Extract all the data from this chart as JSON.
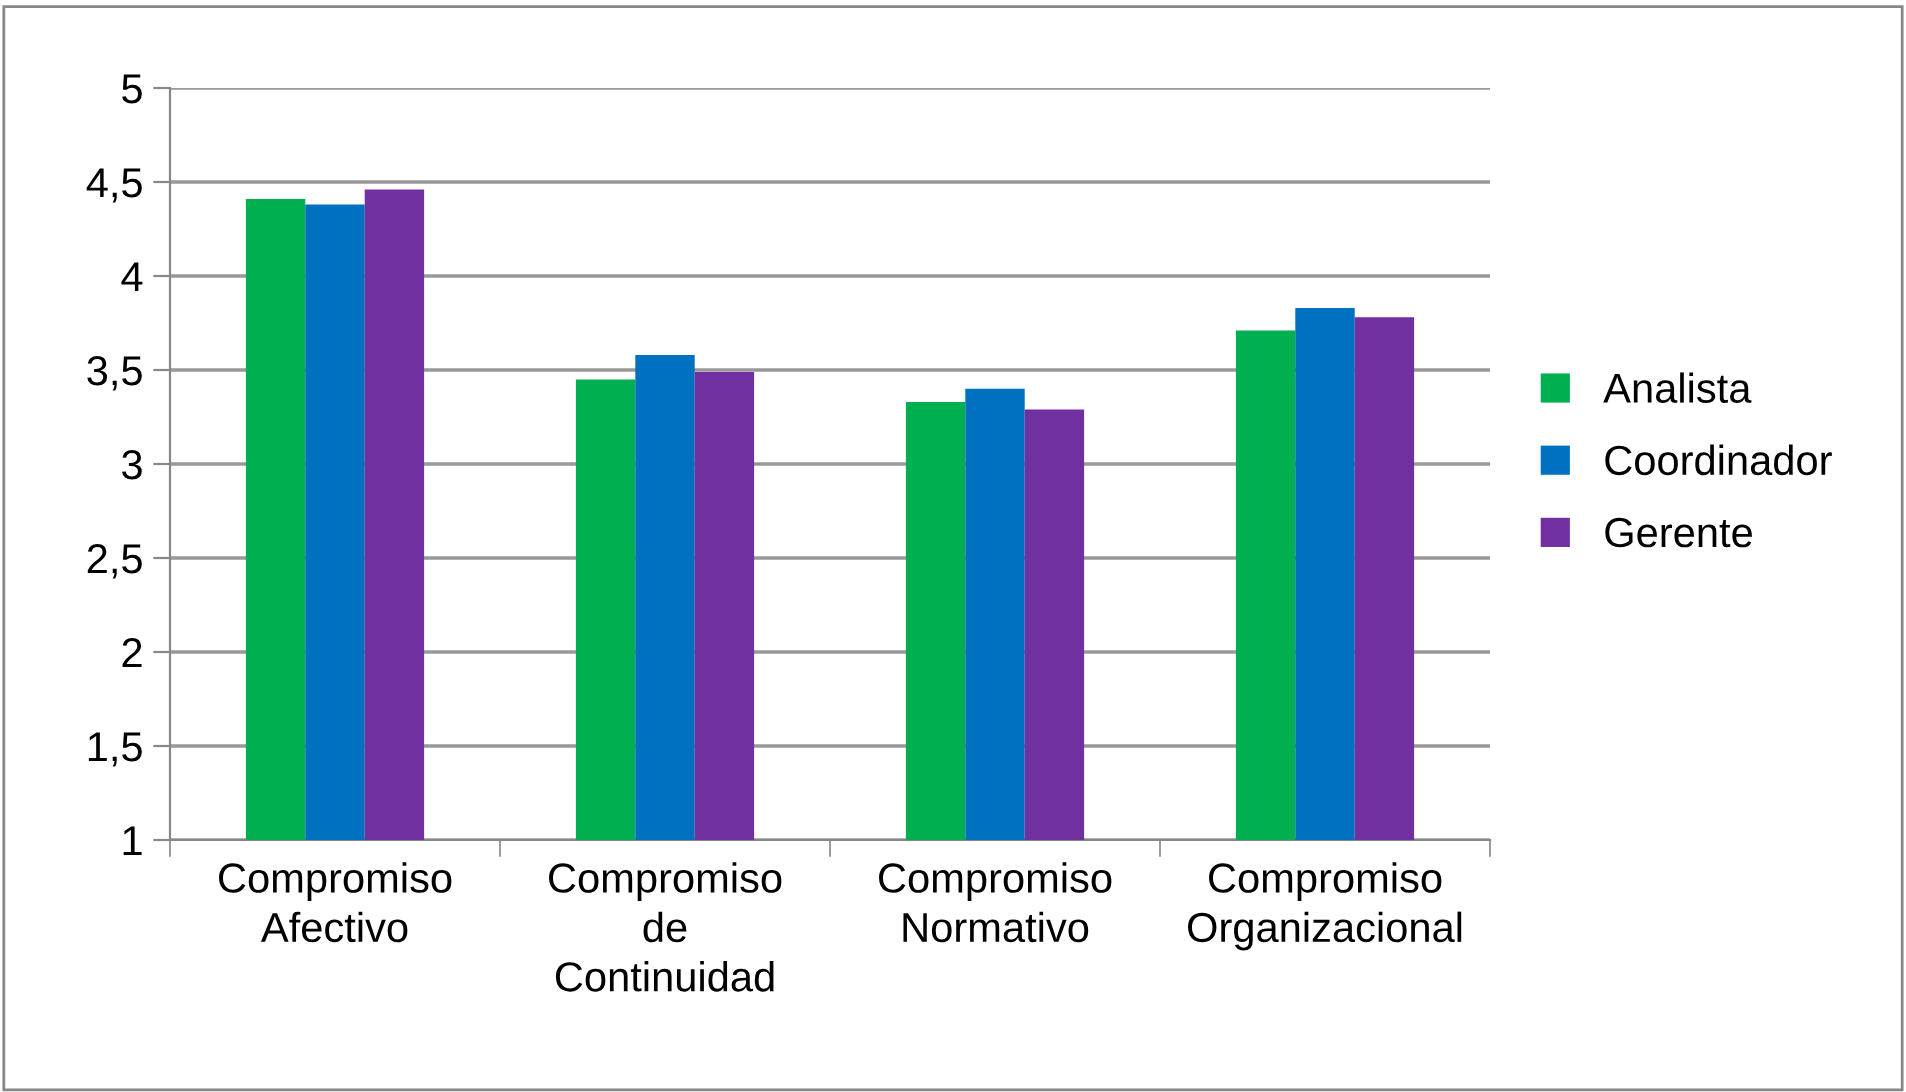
{
  "chart_data": {
    "type": "bar",
    "categories": [
      "Compromiso\nAfectivo",
      "Compromiso\nde\nContinuidad",
      "Compromiso\nNormativo",
      "Compromiso\nOrganizacional"
    ],
    "series": [
      {
        "name": "Analista",
        "color": "#00b050",
        "values": [
          4.41,
          3.45,
          3.33,
          3.71
        ]
      },
      {
        "name": "Coordinador",
        "color": "#0070c0",
        "values": [
          4.38,
          3.58,
          3.4,
          3.83
        ]
      },
      {
        "name": "Gerente",
        "color": "#7030a0",
        "values": [
          4.46,
          3.49,
          3.29,
          3.78
        ]
      }
    ],
    "ylim": [
      1,
      5
    ],
    "yticks": [
      1,
      {
        "value": 1.5,
        "label": "1,5"
      },
      2,
      {
        "value": 2.5,
        "label": "2,5"
      },
      3,
      {
        "value": 3.5,
        "label": "3,5"
      },
      4,
      {
        "value": 4.5,
        "label": "4,5"
      },
      5
    ],
    "grid": "y",
    "legend": "right"
  }
}
